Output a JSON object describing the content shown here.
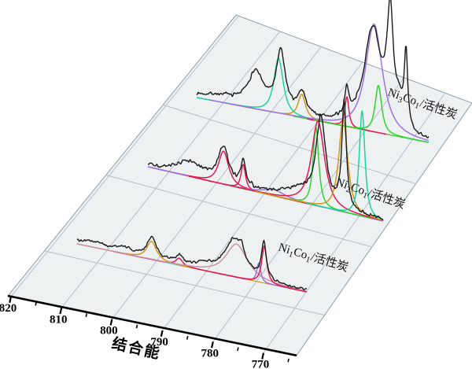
{
  "window": {
    "type": "scientific-figure",
    "description": "3D waterfall XPS Co 2p spectra with peak fitting for Ni-Co on activated carbon catalysts"
  },
  "axis": {
    "title": "结合能",
    "tick_labels": [
      "820",
      "810",
      "800",
      "790",
      "780",
      "770"
    ],
    "minor_tick_step": 5,
    "direction": "reversed (binding energy decreasing to the right)"
  },
  "colors": {
    "plane_fill": "#eef1f2",
    "grid": "#b5c0c8",
    "plane_edge": "#8f9da8",
    "axis": "#000000",
    "experimental": "#1a1a1a",
    "teal": "#1bd49b",
    "green": "#2fd42f",
    "orange": "#d0971c",
    "purple": "#9d72e6",
    "red": "#e31950",
    "cyan": "#2cc4d4",
    "mauve": "#c795a5"
  },
  "chart_data": {
    "type": "line",
    "variant": "3d_waterfall_xps_fitted",
    "xlabel": "结合能",
    "x_ticks": [
      820,
      810,
      800,
      790,
      780,
      770
    ],
    "x_unit": "binding energy (eV)",
    "ylabel": "",
    "grid": true,
    "series": [
      {
        "name": "Ni3Co1/活性炭",
        "label_parts": [
          {
            "t": "Ni",
            "sub": false
          },
          {
            "t": "3",
            "sub": true
          },
          {
            "t": "Co",
            "sub": false
          },
          {
            "t": "1",
            "sub": true
          },
          {
            "t": "/活性炭",
            "sub": false
          }
        ],
        "depth_position": "back",
        "be_range": [
          815.5,
          762.5
        ],
        "noise_amp": 2.3,
        "exp_features": [
          {
            "be": 810.0,
            "h": 6,
            "w": 6.0
          },
          {
            "be": 802.0,
            "h": 43,
            "w": 2.4
          },
          {
            "be": 796.3,
            "h": 74,
            "w": 1.35
          },
          {
            "be": 791.5,
            "h": 28,
            "w": 1.2
          },
          {
            "be": 781.2,
            "h": 36,
            "w": 0.6
          },
          {
            "be": 775.3,
            "h": 128,
            "w": 2.6
          },
          {
            "be": 771.3,
            "h": 138,
            "w": 0.95
          },
          {
            "be": 769.2,
            "h": 26,
            "w": 1.0
          },
          {
            "be": 767.7,
            "h": 95,
            "w": 0.5
          }
        ],
        "components": [
          {
            "be": 796.8,
            "h": 70,
            "w": 1.5,
            "color": "teal"
          },
          {
            "be": 791.5,
            "h": 30,
            "w": 1.2,
            "color": "orange"
          },
          {
            "be": 781.2,
            "h": 38,
            "w": 0.65,
            "color": "red"
          },
          {
            "be": 775.0,
            "h": 137,
            "w": 2.7,
            "color": "purple"
          },
          {
            "be": 774.0,
            "h": 60,
            "w": 1.05,
            "color": "green"
          }
        ],
        "baseline_lines": [
          {
            "from": 793.5,
            "to": 763.0,
            "color": "green"
          },
          {
            "from": 779.0,
            "to": 770.0,
            "color": "green"
          },
          {
            "from": 767.5,
            "to": 762.5,
            "color": "cyan"
          }
        ]
      },
      {
        "name": "Ni2Co1/活性炭",
        "label_parts": [
          {
            "t": "Ni",
            "sub": false
          },
          {
            "t": "2",
            "sub": true
          },
          {
            "t": "Co",
            "sub": false
          },
          {
            "t": "1",
            "sub": true
          },
          {
            "t": "/活性炭",
            "sub": false
          }
        ],
        "depth_position": "middle",
        "be_range": [
          816.0,
          760.0
        ],
        "noise_amp": 2.3,
        "exp_features": [
          {
            "be": 806.0,
            "h": 17,
            "w": 4.0
          },
          {
            "be": 798.0,
            "h": 44,
            "w": 1.6
          },
          {
            "be": 793.3,
            "h": 33,
            "w": 0.7
          },
          {
            "be": 780.0,
            "h": 14,
            "w": 5.0
          },
          {
            "be": 774.8,
            "h": 108,
            "w": 1.5
          },
          {
            "be": 769.3,
            "h": 134,
            "w": 0.7
          }
        ],
        "components": [
          {
            "be": 798.0,
            "h": 42,
            "w": 1.7,
            "color": "red"
          },
          {
            "be": 793.3,
            "h": 31,
            "w": 0.75,
            "color": "red"
          },
          {
            "be": 786.0,
            "h": 8,
            "w": 3.5,
            "color": "purple"
          },
          {
            "be": 776.0,
            "h": 100,
            "w": 0.95,
            "color": "green"
          },
          {
            "be": 775.5,
            "h": 108,
            "w": 2.2,
            "color": "red"
          },
          {
            "be": 769.5,
            "h": 118,
            "w": 1.5,
            "color": "orange"
          },
          {
            "be": 765.0,
            "h": 134,
            "w": 0.95,
            "color": "teal"
          }
        ],
        "baseline_lines": [
          {
            "from": 816.0,
            "to": 770.5,
            "color": "green"
          },
          {
            "from": 772.0,
            "to": 760.0,
            "color": "cyan"
          }
        ]
      },
      {
        "name": "Ni1Co1/活性炭",
        "label_parts": [
          {
            "t": "Ni",
            "sub": false
          },
          {
            "t": "1",
            "sub": true
          },
          {
            "t": "Co",
            "sub": false
          },
          {
            "t": "1",
            "sub": true
          },
          {
            "t": "/活性炭",
            "sub": false
          }
        ],
        "depth_position": "front",
        "be_range": [
          816.0,
          762.0
        ],
        "noise_amp": 2.0,
        "exp_features": [
          {
            "be": 812.0,
            "h": 5,
            "w": 5.0
          },
          {
            "be": 805.0,
            "h": 6,
            "w": 2.0
          },
          {
            "be": 798.5,
            "h": 25,
            "w": 1.5
          },
          {
            "be": 792.0,
            "h": 10,
            "w": 0.9
          },
          {
            "be": 786.0,
            "h": 6,
            "w": 2.0
          },
          {
            "be": 779.0,
            "h": 46,
            "w": 3.0
          },
          {
            "be": 777.3,
            "h": 13,
            "w": 0.6
          },
          {
            "be": 772.1,
            "h": 46,
            "w": 0.75
          }
        ],
        "components": [
          {
            "be": 798.5,
            "h": 23,
            "w": 1.6,
            "color": "orange"
          },
          {
            "be": 792.0,
            "h": 9,
            "w": 1.1,
            "color": "red"
          },
          {
            "be": 778.5,
            "h": 42,
            "w": 3.6,
            "color": "mauve"
          },
          {
            "be": 773.3,
            "h": 24,
            "w": 0.65,
            "color": "purple"
          },
          {
            "be": 772.0,
            "h": 47,
            "w": 0.85,
            "color": "red"
          }
        ],
        "baseline_lines": [
          {
            "from": 816.0,
            "to": 796.0,
            "color": "green"
          },
          {
            "from": 801.0,
            "to": 790.0,
            "color": "cyan"
          },
          {
            "from": 792.0,
            "to": 762.0,
            "color": "orange"
          }
        ]
      }
    ]
  }
}
